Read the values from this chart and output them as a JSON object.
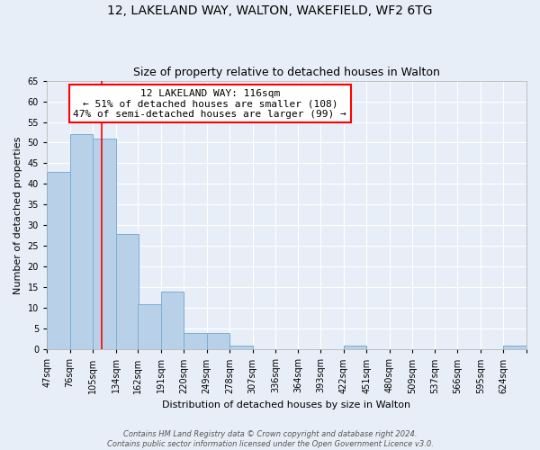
{
  "title": "12, LAKELAND WAY, WALTON, WAKEFIELD, WF2 6TG",
  "subtitle": "Size of property relative to detached houses in Walton",
  "xlabel": "Distribution of detached houses by size in Walton",
  "ylabel": "Number of detached properties",
  "bin_edges": [
    47,
    76,
    105,
    134,
    162,
    191,
    220,
    249,
    278,
    307,
    336,
    364,
    393,
    422,
    451,
    480,
    509,
    537,
    566,
    595,
    624
  ],
  "bin_labels": [
    "47sqm",
    "76sqm",
    "105sqm",
    "134sqm",
    "162sqm",
    "191sqm",
    "220sqm",
    "249sqm",
    "278sqm",
    "307sqm",
    "336sqm",
    "364sqm",
    "393sqm",
    "422sqm",
    "451sqm",
    "480sqm",
    "509sqm",
    "537sqm",
    "566sqm",
    "595sqm",
    "624sqm"
  ],
  "counts": [
    43,
    52,
    51,
    28,
    11,
    14,
    4,
    4,
    1,
    0,
    0,
    0,
    0,
    1,
    0,
    0,
    0,
    0,
    0,
    0,
    1
  ],
  "bar_color": "#b8d0e8",
  "bar_edge_color": "#7aafd4",
  "property_line_x": 116,
  "property_line_color": "red",
  "annotation_title": "12 LAKELAND WAY: 116sqm",
  "annotation_line1": "← 51% of detached houses are smaller (108)",
  "annotation_line2": "47% of semi-detached houses are larger (99) →",
  "annotation_box_color": "white",
  "annotation_box_edge_color": "red",
  "ylim": [
    0,
    65
  ],
  "yticks": [
    0,
    5,
    10,
    15,
    20,
    25,
    30,
    35,
    40,
    45,
    50,
    55,
    60,
    65
  ],
  "footer_line1": "Contains HM Land Registry data © Crown copyright and database right 2024.",
  "footer_line2": "Contains public sector information licensed under the Open Government Licence v3.0.",
  "background_color": "#e8eef7",
  "plot_background_color": "#e8eef7",
  "grid_color": "white",
  "title_fontsize": 10,
  "subtitle_fontsize": 9,
  "axis_label_fontsize": 8,
  "tick_fontsize": 7,
  "annotation_fontsize": 8,
  "footer_fontsize": 6
}
